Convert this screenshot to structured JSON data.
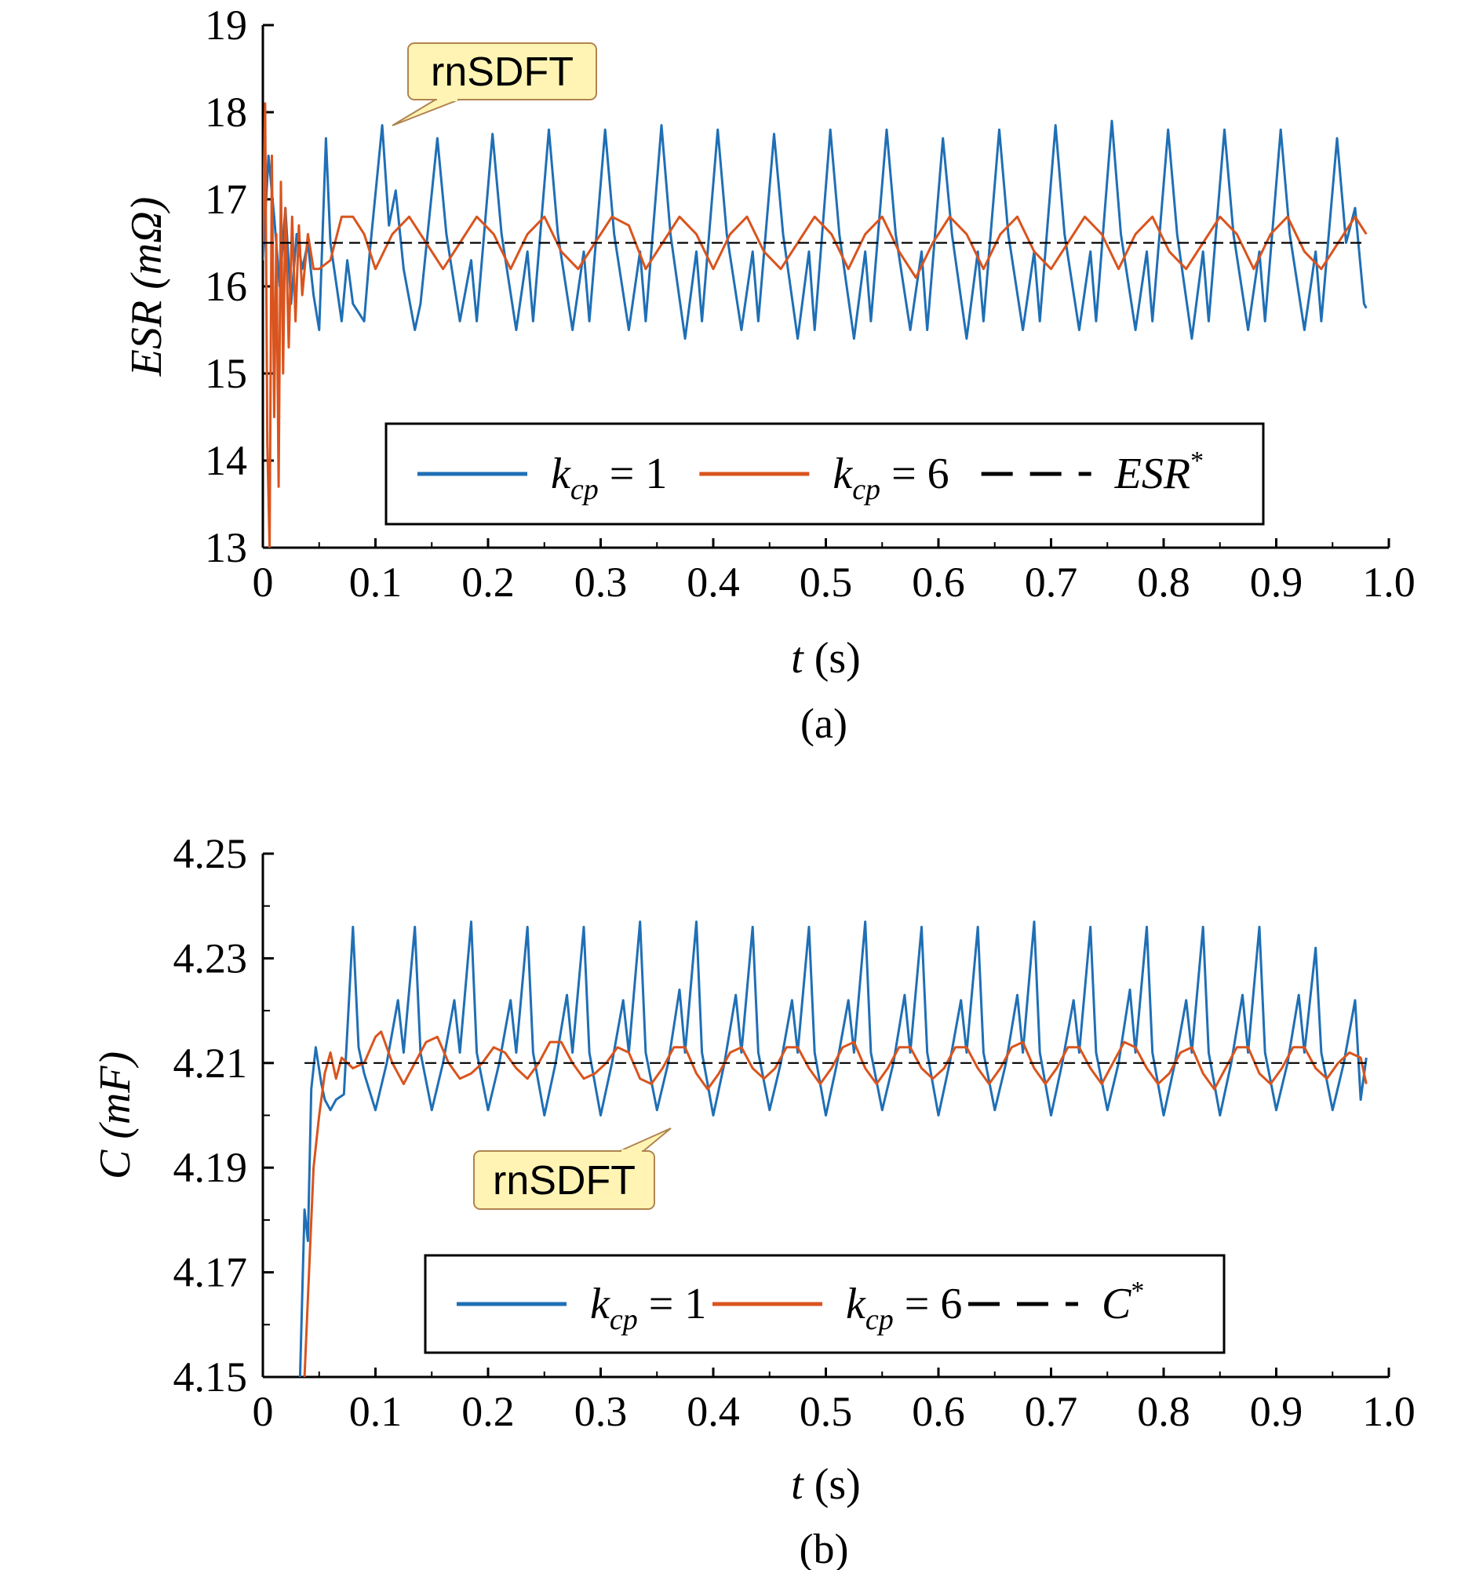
{
  "figure": {
    "panels": [
      {
        "caption": "(a)",
        "callout": "rnSDFT",
        "legend": [
          {
            "base": "k",
            "sub": "cp",
            "rest": " = 1",
            "style": "solid",
            "color": "#1f6fb5"
          },
          {
            "base": "k",
            "sub": "cp",
            "rest": " = 6",
            "style": "solid",
            "color": "#d9541e"
          },
          {
            "base": "ESR",
            "sup": "*",
            "style": "dashed",
            "color": "#000000"
          }
        ]
      },
      {
        "caption": "(b)",
        "callout": "rnSDFT",
        "legend": [
          {
            "base": "k",
            "sub": "cp",
            "rest": " = 1",
            "style": "solid",
            "color": "#1f6fb5"
          },
          {
            "base": "k",
            "sub": "cp",
            "rest": " = 6",
            "style": "solid",
            "color": "#d9541e"
          },
          {
            "base": "C",
            "sup": "*",
            "style": "dashed",
            "color": "#000000"
          }
        ]
      }
    ]
  },
  "chart_data": [
    {
      "type": "line",
      "panel": "a",
      "xlabel": "t (s)",
      "xlabel_italic": "t",
      "xlabel_unit": " (s)",
      "ylabel": "ESR (mΩ)",
      "ylabel_italic": "ESR (mΩ)",
      "ylabel_unit": "",
      "xlim": [
        0,
        1.0
      ],
      "ylim": [
        13,
        19
      ],
      "xticks": [
        0,
        0.1,
        0.2,
        0.3,
        0.4,
        0.5,
        0.6,
        0.7,
        0.8,
        0.9,
        1.0
      ],
      "xtick_labels": [
        "0",
        "0.1",
        "0.2",
        "0.3",
        "0.4",
        "0.5",
        "0.6",
        "0.7",
        "0.8",
        "0.9",
        "1.0"
      ],
      "yticks": [
        13,
        14,
        15,
        16,
        17,
        18,
        19
      ],
      "ytick_labels": [
        "13",
        "14",
        "15",
        "16",
        "17",
        "18",
        "19"
      ],
      "grid": false,
      "legend_position": "lower-center",
      "series": [
        {
          "name": "kcp = 1",
          "color": "#1f6fb5",
          "x": [
            0,
            0.005,
            0.01,
            0.015,
            0.02,
            0.025,
            0.03,
            0.035,
            0.04,
            0.045,
            0.05,
            0.056,
            0.06,
            0.07,
            0.075,
            0.08,
            0.09,
            0.095,
            0.106,
            0.112,
            0.118,
            0.125,
            0.135,
            0.14,
            0.155,
            0.163,
            0.175,
            0.185,
            0.19,
            0.204,
            0.212,
            0.225,
            0.235,
            0.24,
            0.254,
            0.262,
            0.275,
            0.285,
            0.29,
            0.304,
            0.312,
            0.325,
            0.335,
            0.34,
            0.354,
            0.362,
            0.375,
            0.385,
            0.39,
            0.404,
            0.412,
            0.425,
            0.435,
            0.44,
            0.454,
            0.462,
            0.475,
            0.485,
            0.49,
            0.504,
            0.512,
            0.525,
            0.535,
            0.54,
            0.554,
            0.562,
            0.575,
            0.585,
            0.59,
            0.604,
            0.612,
            0.625,
            0.635,
            0.64,
            0.654,
            0.662,
            0.675,
            0.685,
            0.69,
            0.704,
            0.712,
            0.725,
            0.735,
            0.74,
            0.754,
            0.762,
            0.775,
            0.785,
            0.79,
            0.804,
            0.812,
            0.825,
            0.835,
            0.84,
            0.854,
            0.862,
            0.875,
            0.885,
            0.89,
            0.904,
            0.912,
            0.925,
            0.935,
            0.94,
            0.954,
            0.962,
            0.97,
            0.978,
            0.98
          ],
          "values": [
            16.3,
            17.5,
            16.8,
            16.0,
            16.9,
            15.8,
            16.6,
            16.2,
            16.5,
            15.9,
            15.5,
            17.7,
            16.5,
            15.6,
            16.3,
            15.8,
            15.6,
            16.4,
            17.85,
            16.7,
            17.1,
            16.2,
            15.5,
            15.8,
            17.7,
            16.6,
            15.6,
            16.3,
            15.6,
            17.75,
            16.6,
            15.5,
            16.4,
            15.6,
            17.8,
            16.6,
            15.5,
            16.4,
            15.6,
            17.8,
            16.6,
            15.5,
            16.4,
            15.6,
            17.85,
            16.6,
            15.4,
            16.4,
            15.6,
            17.8,
            16.6,
            15.5,
            16.4,
            15.6,
            17.75,
            16.6,
            15.4,
            16.4,
            15.5,
            17.8,
            16.6,
            15.4,
            16.4,
            15.6,
            17.8,
            16.6,
            15.5,
            16.4,
            15.5,
            17.7,
            16.6,
            15.4,
            16.4,
            15.6,
            17.8,
            16.6,
            15.5,
            16.4,
            15.6,
            17.85,
            16.6,
            15.5,
            16.4,
            15.6,
            17.9,
            16.6,
            15.5,
            16.4,
            15.6,
            17.8,
            16.6,
            15.4,
            16.4,
            15.6,
            17.8,
            16.6,
            15.5,
            16.4,
            15.6,
            17.8,
            16.6,
            15.5,
            16.4,
            15.6,
            17.7,
            16.5,
            16.9,
            15.8,
            15.75
          ]
        },
        {
          "name": "kcp = 6",
          "color": "#d9541e",
          "x": [
            0,
            0.002,
            0.004,
            0.006,
            0.008,
            0.01,
            0.012,
            0.014,
            0.016,
            0.018,
            0.02,
            0.023,
            0.026,
            0.029,
            0.032,
            0.035,
            0.04,
            0.045,
            0.05,
            0.06,
            0.07,
            0.08,
            0.09,
            0.1,
            0.115,
            0.13,
            0.145,
            0.16,
            0.175,
            0.19,
            0.205,
            0.22,
            0.235,
            0.25,
            0.265,
            0.28,
            0.295,
            0.31,
            0.325,
            0.34,
            0.355,
            0.37,
            0.385,
            0.4,
            0.415,
            0.43,
            0.445,
            0.46,
            0.475,
            0.49,
            0.505,
            0.52,
            0.535,
            0.55,
            0.565,
            0.58,
            0.595,
            0.61,
            0.625,
            0.64,
            0.655,
            0.67,
            0.685,
            0.7,
            0.715,
            0.73,
            0.745,
            0.76,
            0.775,
            0.79,
            0.805,
            0.82,
            0.835,
            0.85,
            0.865,
            0.88,
            0.895,
            0.91,
            0.925,
            0.94,
            0.955,
            0.97,
            0.98
          ],
          "values": [
            16.5,
            18.1,
            14.2,
            13.0,
            17.5,
            14.5,
            16.6,
            13.7,
            17.2,
            15.0,
            16.9,
            15.3,
            16.8,
            15.6,
            16.7,
            15.9,
            16.6,
            16.2,
            16.2,
            16.3,
            16.8,
            16.8,
            16.6,
            16.2,
            16.6,
            16.8,
            16.5,
            16.2,
            16.5,
            16.8,
            16.6,
            16.2,
            16.6,
            16.8,
            16.4,
            16.2,
            16.5,
            16.8,
            16.7,
            16.2,
            16.5,
            16.8,
            16.6,
            16.2,
            16.6,
            16.8,
            16.4,
            16.2,
            16.5,
            16.8,
            16.6,
            16.2,
            16.6,
            16.8,
            16.4,
            16.1,
            16.5,
            16.8,
            16.6,
            16.2,
            16.6,
            16.8,
            16.4,
            16.2,
            16.5,
            16.8,
            16.6,
            16.2,
            16.6,
            16.8,
            16.4,
            16.2,
            16.5,
            16.8,
            16.6,
            16.2,
            16.6,
            16.8,
            16.4,
            16.2,
            16.5,
            16.8,
            16.6
          ]
        },
        {
          "name": "ESR*",
          "color": "#000000",
          "dashed": true,
          "x": [
            0,
            0.98
          ],
          "values": [
            16.5,
            16.5
          ]
        }
      ]
    },
    {
      "type": "line",
      "panel": "b",
      "xlabel": "t (s)",
      "xlabel_italic": "t",
      "xlabel_unit": " (s)",
      "ylabel": "C (mF)",
      "ylabel_italic": "C (mF)",
      "ylabel_unit": "",
      "xlim": [
        0,
        1.0
      ],
      "ylim": [
        4.15,
        4.25
      ],
      "xticks": [
        0,
        0.1,
        0.2,
        0.3,
        0.4,
        0.5,
        0.6,
        0.7,
        0.8,
        0.9,
        1.0
      ],
      "xtick_labels": [
        "0",
        "0.1",
        "0.2",
        "0.3",
        "0.4",
        "0.5",
        "0.6",
        "0.7",
        "0.8",
        "0.9",
        "1.0"
      ],
      "yticks": [
        4.15,
        4.17,
        4.19,
        4.21,
        4.23,
        4.25
      ],
      "ytick_labels": [
        "4.15",
        "4.17",
        "4.19",
        "4.21",
        "4.23",
        "4.25"
      ],
      "yminor": [
        4.16,
        4.18,
        4.2,
        4.22,
        4.24
      ],
      "grid": false,
      "legend_position": "lower-center",
      "series": [
        {
          "name": "kcp = 1",
          "color": "#1f6fb5",
          "x": [
            0.033,
            0.037,
            0.04,
            0.043,
            0.047,
            0.052,
            0.055,
            0.06,
            0.065,
            0.072,
            0.08,
            0.085,
            0.09,
            0.1,
            0.11,
            0.12,
            0.125,
            0.135,
            0.14,
            0.15,
            0.16,
            0.17,
            0.175,
            0.185,
            0.19,
            0.2,
            0.21,
            0.22,
            0.225,
            0.235,
            0.24,
            0.25,
            0.26,
            0.27,
            0.275,
            0.285,
            0.29,
            0.3,
            0.31,
            0.32,
            0.325,
            0.335,
            0.34,
            0.35,
            0.36,
            0.37,
            0.375,
            0.385,
            0.39,
            0.4,
            0.41,
            0.42,
            0.425,
            0.435,
            0.44,
            0.45,
            0.46,
            0.47,
            0.475,
            0.485,
            0.49,
            0.5,
            0.51,
            0.52,
            0.525,
            0.535,
            0.54,
            0.55,
            0.56,
            0.57,
            0.575,
            0.585,
            0.59,
            0.6,
            0.61,
            0.62,
            0.625,
            0.635,
            0.64,
            0.65,
            0.66,
            0.67,
            0.675,
            0.685,
            0.69,
            0.7,
            0.71,
            0.72,
            0.725,
            0.735,
            0.74,
            0.75,
            0.76,
            0.77,
            0.775,
            0.785,
            0.79,
            0.8,
            0.81,
            0.82,
            0.825,
            0.835,
            0.84,
            0.85,
            0.86,
            0.87,
            0.875,
            0.885,
            0.89,
            0.9,
            0.91,
            0.92,
            0.925,
            0.935,
            0.94,
            0.95,
            0.96,
            0.97,
            0.975,
            0.98
          ],
          "values": [
            4.15,
            4.182,
            4.176,
            4.205,
            4.213,
            4.206,
            4.203,
            4.201,
            4.203,
            4.204,
            4.236,
            4.213,
            4.208,
            4.201,
            4.21,
            4.222,
            4.212,
            4.236,
            4.212,
            4.201,
            4.21,
            4.222,
            4.212,
            4.237,
            4.212,
            4.201,
            4.21,
            4.222,
            4.212,
            4.236,
            4.212,
            4.2,
            4.21,
            4.223,
            4.212,
            4.236,
            4.212,
            4.2,
            4.21,
            4.222,
            4.212,
            4.237,
            4.212,
            4.201,
            4.21,
            4.224,
            4.212,
            4.237,
            4.212,
            4.2,
            4.21,
            4.223,
            4.212,
            4.236,
            4.212,
            4.201,
            4.21,
            4.222,
            4.212,
            4.236,
            4.212,
            4.2,
            4.21,
            4.222,
            4.212,
            4.237,
            4.212,
            4.201,
            4.21,
            4.223,
            4.212,
            4.236,
            4.212,
            4.2,
            4.21,
            4.222,
            4.212,
            4.236,
            4.212,
            4.201,
            4.21,
            4.223,
            4.212,
            4.237,
            4.212,
            4.2,
            4.21,
            4.222,
            4.212,
            4.236,
            4.212,
            4.201,
            4.21,
            4.224,
            4.212,
            4.236,
            4.212,
            4.2,
            4.21,
            4.222,
            4.212,
            4.236,
            4.212,
            4.2,
            4.21,
            4.223,
            4.212,
            4.236,
            4.212,
            4.201,
            4.21,
            4.223,
            4.212,
            4.232,
            4.212,
            4.201,
            4.21,
            4.222,
            4.203,
            4.211
          ]
        },
        {
          "name": "kcp = 6",
          "color": "#d9541e",
          "x": [
            0.037,
            0.04,
            0.045,
            0.05,
            0.055,
            0.06,
            0.065,
            0.07,
            0.08,
            0.09,
            0.1,
            0.105,
            0.115,
            0.125,
            0.135,
            0.145,
            0.155,
            0.165,
            0.175,
            0.185,
            0.195,
            0.205,
            0.215,
            0.225,
            0.235,
            0.245,
            0.255,
            0.265,
            0.275,
            0.285,
            0.295,
            0.305,
            0.315,
            0.325,
            0.335,
            0.345,
            0.355,
            0.365,
            0.375,
            0.385,
            0.395,
            0.405,
            0.415,
            0.425,
            0.435,
            0.445,
            0.455,
            0.465,
            0.475,
            0.485,
            0.495,
            0.505,
            0.515,
            0.525,
            0.535,
            0.545,
            0.555,
            0.565,
            0.575,
            0.585,
            0.595,
            0.605,
            0.615,
            0.625,
            0.635,
            0.645,
            0.655,
            0.665,
            0.675,
            0.685,
            0.695,
            0.705,
            0.715,
            0.725,
            0.735,
            0.745,
            0.755,
            0.765,
            0.775,
            0.785,
            0.795,
            0.805,
            0.815,
            0.825,
            0.835,
            0.845,
            0.855,
            0.865,
            0.875,
            0.885,
            0.895,
            0.905,
            0.915,
            0.925,
            0.935,
            0.945,
            0.955,
            0.965,
            0.975,
            0.98
          ],
          "values": [
            4.15,
            4.165,
            4.19,
            4.2,
            4.208,
            4.212,
            4.207,
            4.211,
            4.209,
            4.21,
            4.215,
            4.216,
            4.21,
            4.206,
            4.21,
            4.214,
            4.215,
            4.21,
            4.207,
            4.208,
            4.21,
            4.213,
            4.212,
            4.209,
            4.207,
            4.21,
            4.214,
            4.214,
            4.21,
            4.207,
            4.208,
            4.21,
            4.213,
            4.212,
            4.207,
            4.206,
            4.209,
            4.213,
            4.213,
            4.208,
            4.205,
            4.208,
            4.212,
            4.213,
            4.209,
            4.207,
            4.209,
            4.213,
            4.213,
            4.209,
            4.206,
            4.209,
            4.213,
            4.214,
            4.209,
            4.206,
            4.209,
            4.213,
            4.213,
            4.209,
            4.207,
            4.209,
            4.213,
            4.213,
            4.209,
            4.206,
            4.209,
            4.213,
            4.214,
            4.209,
            4.206,
            4.209,
            4.213,
            4.213,
            4.209,
            4.206,
            4.21,
            4.214,
            4.213,
            4.209,
            4.206,
            4.208,
            4.212,
            4.213,
            4.208,
            4.205,
            4.209,
            4.213,
            4.213,
            4.208,
            4.206,
            4.209,
            4.213,
            4.213,
            4.209,
            4.207,
            4.21,
            4.212,
            4.211,
            4.206
          ]
        },
        {
          "name": "C*",
          "color": "#000000",
          "dashed": true,
          "x": [
            0.037,
            0.98
          ],
          "values": [
            4.21,
            4.21
          ]
        }
      ]
    }
  ]
}
